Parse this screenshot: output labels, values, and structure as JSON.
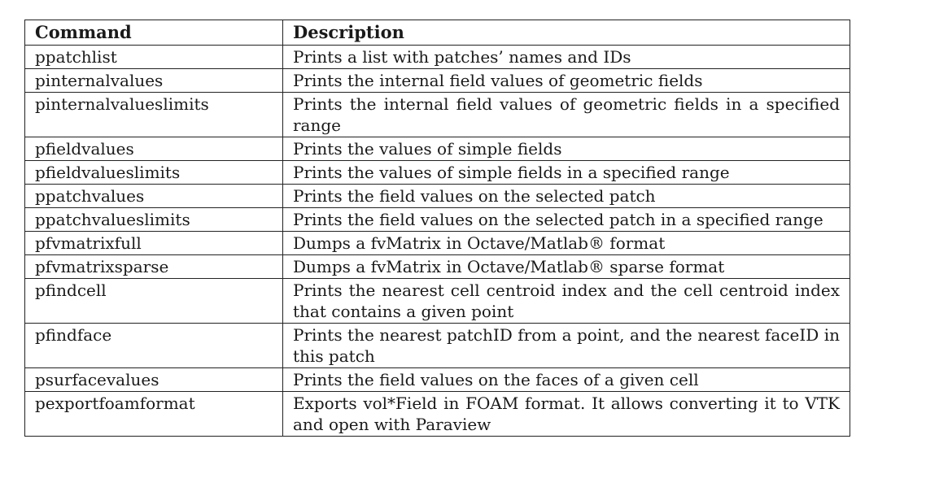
{
  "table": {
    "headers": {
      "command": "Command",
      "description": "Description"
    },
    "rows": [
      {
        "command": "ppatchlist",
        "description": "Prints a list with patches’ names and IDs"
      },
      {
        "command": "pinternalvalues",
        "description": "Prints the internal field values of geometric fields"
      },
      {
        "command": "pinternalvalueslimits",
        "description": "Prints the internal field values of geometric fields in a specified range"
      },
      {
        "command": "pfieldvalues",
        "description": "Prints the values of simple fields"
      },
      {
        "command": "pfieldvalueslimits",
        "description": "Prints the values of simple fields in a specified range"
      },
      {
        "command": "ppatchvalues",
        "description": "Prints the field values on the selected patch"
      },
      {
        "command": "ppatchvalueslimits",
        "description": "Prints the field values on the selected patch in a specified range"
      },
      {
        "command": "pfvmatrixfull",
        "description": "Dumps a fvMatrix in Octave/Matlab® format"
      },
      {
        "command": "pfvmatrixsparse",
        "description": "Dumps a fvMatrix in Octave/Matlab® sparse format"
      },
      {
        "command": "pfindcell",
        "description": "Prints the nearest cell centroid index and the cell centroid index that contains a given point"
      },
      {
        "command": "pfindface",
        "description": "Prints the nearest patchID from a point, and the nearest faceID in this patch"
      },
      {
        "command": "psurfacevalues",
        "description": "Prints the field values on the faces of a given cell"
      },
      {
        "command": "pexportfoamformat",
        "description": "Exports vol*Field in FOAM format.  It allows converting it to VTK and open with Paraview"
      }
    ]
  }
}
